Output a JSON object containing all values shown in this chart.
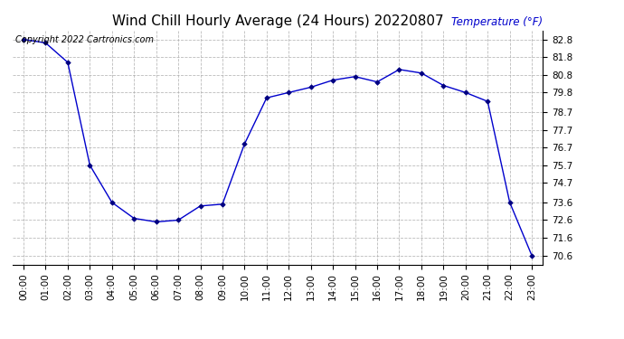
{
  "title": "Wind Chill Hourly Average (24 Hours) 20220807",
  "ylabel": "Temperature (°F)",
  "copyright_text": "Copyright 2022 Cartronics.com",
  "hours": [
    "00:00",
    "01:00",
    "02:00",
    "03:00",
    "04:00",
    "05:00",
    "06:00",
    "07:00",
    "08:00",
    "09:00",
    "10:00",
    "11:00",
    "12:00",
    "13:00",
    "14:00",
    "15:00",
    "16:00",
    "17:00",
    "18:00",
    "19:00",
    "20:00",
    "21:00",
    "22:00",
    "23:00"
  ],
  "values": [
    82.8,
    82.6,
    81.5,
    75.7,
    73.6,
    72.7,
    72.5,
    72.6,
    73.4,
    73.5,
    76.9,
    79.5,
    79.8,
    80.1,
    80.5,
    80.7,
    80.4,
    81.1,
    80.9,
    80.2,
    79.8,
    79.3,
    73.6,
    70.6
  ],
  "line_color": "#0000cc",
  "marker_color": "#000080",
  "background_color": "#ffffff",
  "grid_color": "#aaaaaa",
  "ylim_min": 70.1,
  "ylim_max": 83.3,
  "yticks": [
    70.6,
    71.6,
    72.6,
    73.6,
    74.7,
    75.7,
    76.7,
    77.7,
    78.7,
    79.8,
    80.8,
    81.8,
    82.8
  ],
  "title_fontsize": 11,
  "ylabel_color": "#0000cc",
  "copyright_color": "#000000",
  "copyright_fontsize": 7,
  "tick_fontsize": 7.5,
  "ytick_fontsize": 7.5
}
